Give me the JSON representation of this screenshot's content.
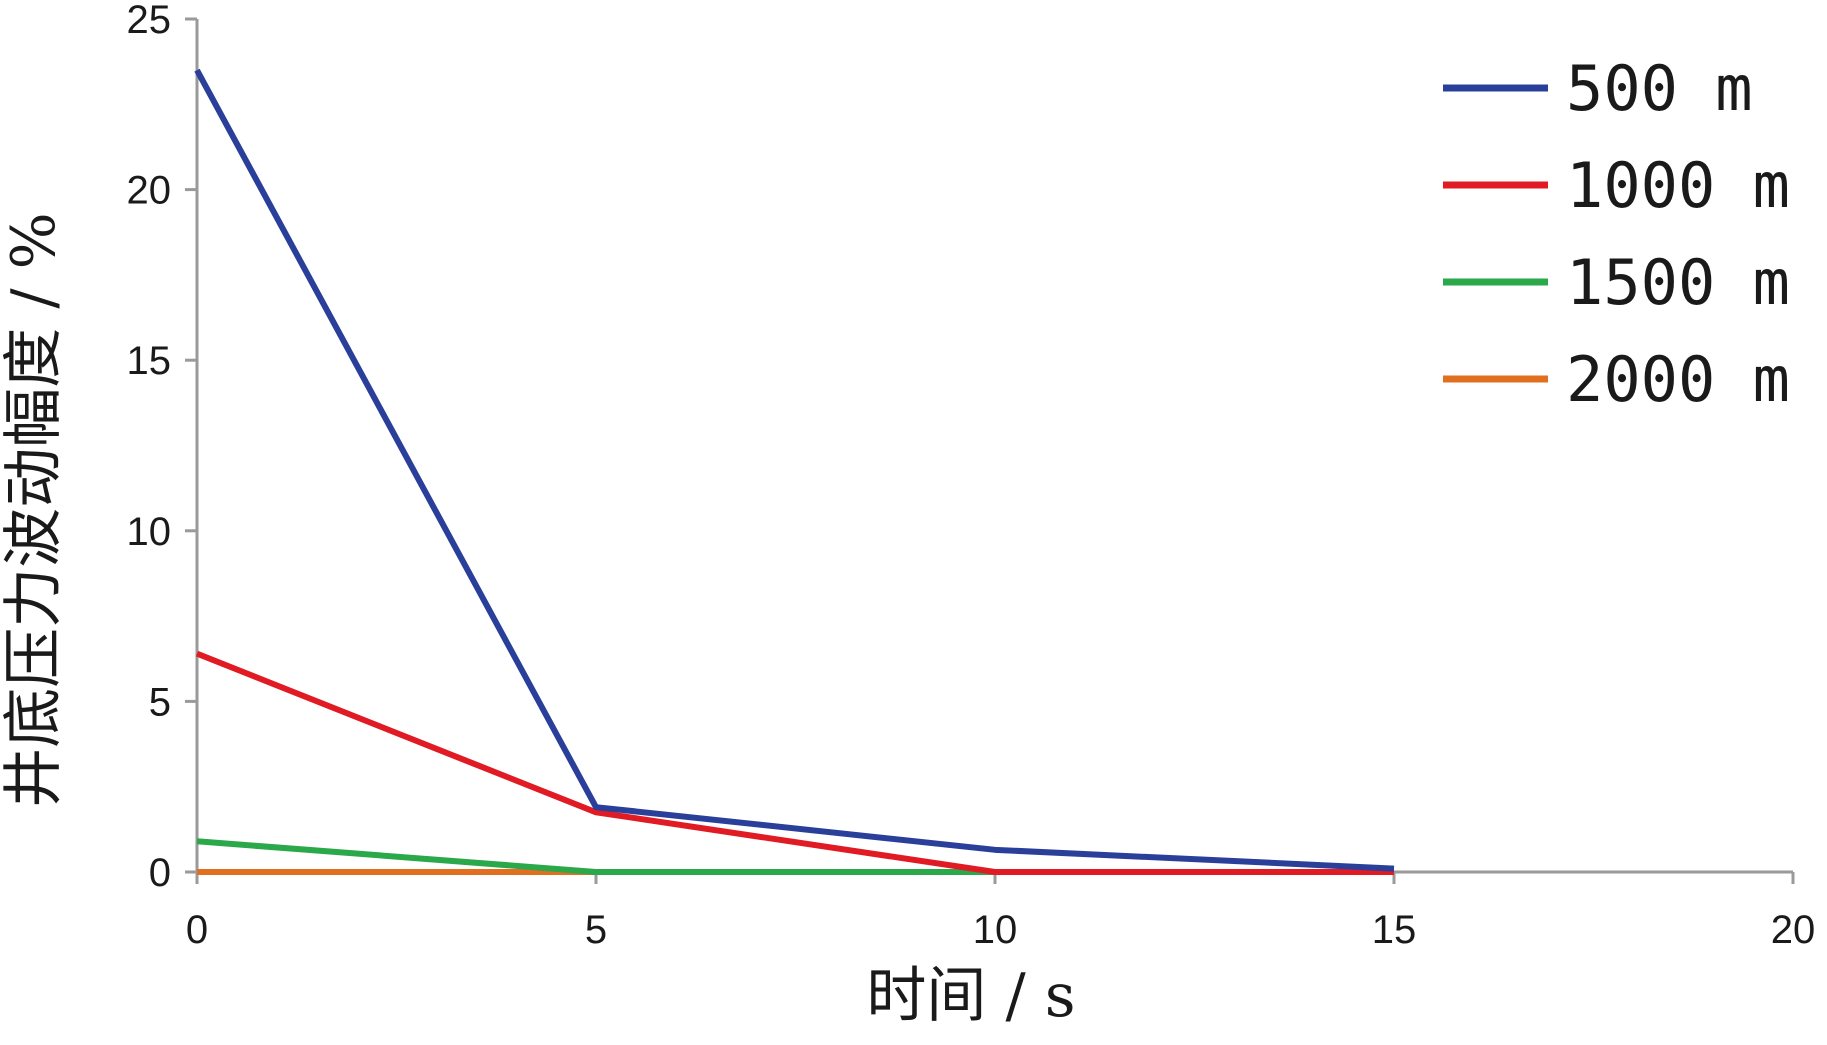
{
  "chart_data": {
    "type": "line",
    "xlabel": "时间 / s",
    "ylabel": "井底压力波动幅度 / %",
    "xlim": [
      0,
      20
    ],
    "ylim": [
      0,
      25
    ],
    "x_ticks": [
      "0",
      "5",
      "10",
      "15",
      "20"
    ],
    "y_ticks": [
      "0",
      "5",
      "10",
      "15",
      "20",
      "25"
    ],
    "grid": false,
    "legend_position": "top-right",
    "series": [
      {
        "name": "500 m",
        "color": "#2a3f9a",
        "x": [
          0,
          5,
          10,
          15
        ],
        "y": [
          23.5,
          1.9,
          0.65,
          0.1
        ]
      },
      {
        "name": "1000 m",
        "color": "#e01b24",
        "x": [
          0,
          5,
          10,
          15
        ],
        "y": [
          6.4,
          1.75,
          0.0,
          0.0
        ]
      },
      {
        "name": "1500 m",
        "color": "#2aa84a",
        "x": [
          0,
          5,
          10,
          15
        ],
        "y": [
          0.9,
          0.0,
          0.0,
          0.0
        ]
      },
      {
        "name": "2000 m",
        "color": "#e07020",
        "x": [
          0,
          5,
          10,
          15
        ],
        "y": [
          0.0,
          0.0,
          0.0,
          0.0
        ]
      }
    ]
  }
}
